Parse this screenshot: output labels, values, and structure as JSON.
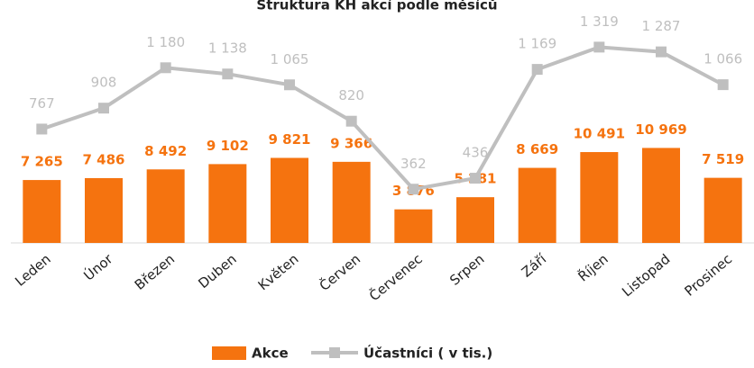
{
  "chart_data": {
    "type": "bar_line",
    "title": "Struktura KH akcí podle měsíců",
    "categories": [
      "Leden",
      "Únor",
      "Březen",
      "Duben",
      "Květen",
      "Červen",
      "Červenec",
      "Srpen",
      "Září",
      "Říjen",
      "Listopad",
      "Prosinec"
    ],
    "series": [
      {
        "name": "Akce",
        "type": "bar",
        "color": "#f5730f",
        "values": [
          7265,
          7486,
          8492,
          9102,
          9821,
          9366,
          3876,
          5281,
          8669,
          10491,
          10969,
          7519
        ],
        "value_labels": [
          "7 265",
          "7 486",
          "8 492",
          "9 102",
          "9 821",
          "9 366",
          "3 876",
          "5 281",
          "8 669",
          "10 491",
          "10 969",
          "7 519"
        ]
      },
      {
        "name": "Účastníci ( v tis.)",
        "type": "line",
        "axis": "y2",
        "color": "#bfbfbf",
        "values": [
          767,
          908,
          1180,
          1138,
          1065,
          820,
          362,
          436,
          1169,
          1319,
          1287,
          1066
        ],
        "value_labels": [
          "767",
          "908",
          "1 180",
          "1 138",
          "1 065",
          "820",
          "362",
          "436",
          "1 169",
          "1 319",
          "1 287",
          "1 066"
        ]
      }
    ],
    "ylim": [
      0,
      24000
    ],
    "y2lim": [
      0,
      1400
    ],
    "legend": "bottom"
  }
}
